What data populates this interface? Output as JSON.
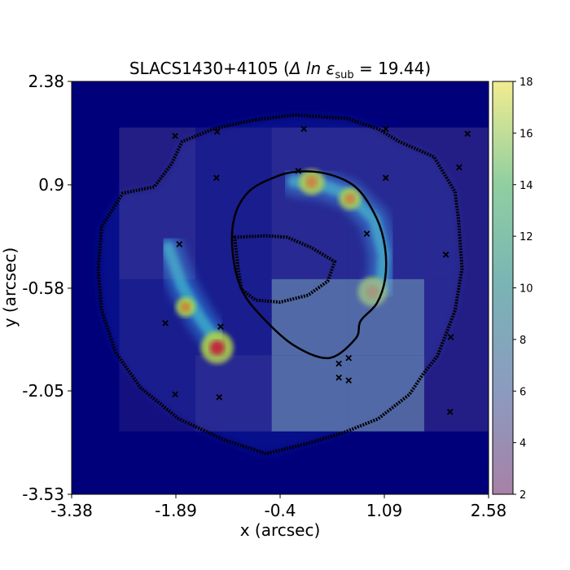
{
  "chart_data": {
    "type": "heatmap",
    "title_prefix": "SLACS1430+4105 (",
    "title_symbol": "Δ ln ε",
    "title_subscript": "sub",
    "title_suffix": " =  19.44)",
    "xlabel": "x (arcsec)",
    "ylabel": "y (arcsec)",
    "xlim": [
      -3.38,
      2.58
    ],
    "ylim": [
      -3.53,
      2.38
    ],
    "x_tick_labels": [
      "-3.38",
      "-1.89",
      "-0.4",
      "1.09",
      "2.58"
    ],
    "x_tick_values": [
      -3.38,
      -1.89,
      -0.4,
      1.09,
      2.58
    ],
    "y_tick_labels": [
      "2.38",
      "0.9",
      "-0.58",
      "-2.05",
      "-3.53"
    ],
    "y_tick_values": [
      2.38,
      0.9,
      -0.58,
      -2.05,
      -3.53
    ],
    "colorbar": {
      "range": [
        2,
        18
      ],
      "ticks": [
        "2",
        "4",
        "6",
        "8",
        "10",
        "12",
        "14",
        "16",
        "18"
      ],
      "colormap": "viridis, semi-transparent"
    },
    "subhalo_grid": {
      "x_edges": [
        -2.7,
        -1.61,
        -0.52,
        0.57,
        1.66,
        2.58
      ],
      "y_edges": [
        1.72,
        0.64,
        -0.45,
        -1.54,
        -2.63
      ],
      "values": [
        [
          3,
          2,
          3,
          3,
          3
        ],
        [
          3,
          2,
          3,
          4,
          3
        ],
        [
          2,
          2,
          8,
          8,
          3
        ],
        [
          2,
          3,
          8,
          8,
          3
        ]
      ],
      "default_value": 2
    },
    "lensed_arcs": [
      {
        "name": "upper-right arc",
        "points": [
          [
            -0.2,
            0.95
          ],
          [
            0.2,
            0.9
          ],
          [
            0.6,
            0.75
          ],
          [
            0.95,
            0.4
          ],
          [
            1.08,
            -0.1
          ],
          [
            1.05,
            -0.55
          ]
        ]
      },
      {
        "name": "left arc",
        "points": [
          [
            -2.0,
            0.0
          ],
          [
            -1.8,
            -0.55
          ],
          [
            -1.55,
            -1.0
          ],
          [
            -1.3,
            -1.35
          ]
        ]
      }
    ],
    "bright_knots": [
      {
        "x": -1.3,
        "y": -1.43,
        "intensity": 1.0
      },
      {
        "x": 0.92,
        "y": -0.63,
        "intensity": 0.85
      },
      {
        "x": 0.05,
        "y": 0.94,
        "intensity": 0.7
      },
      {
        "x": 0.6,
        "y": 0.7,
        "intensity": 0.55
      },
      {
        "x": -1.75,
        "y": -0.85,
        "intensity": 0.45
      }
    ],
    "critical_curve": [
      [
        -0.15,
        1.09
      ],
      [
        0.3,
        1.05
      ],
      [
        0.7,
        0.85
      ],
      [
        0.98,
        0.42
      ],
      [
        1.1,
        0.0
      ],
      [
        1.1,
        -0.45
      ],
      [
        0.98,
        -0.8
      ],
      [
        0.75,
        -1.05
      ],
      [
        0.68,
        -1.3
      ],
      [
        0.3,
        -1.58
      ],
      [
        -0.2,
        -1.4
      ],
      [
        -0.65,
        -1.0
      ],
      [
        -0.95,
        -0.6
      ],
      [
        -1.08,
        -0.05
      ],
      [
        -1.05,
        0.45
      ],
      [
        -0.85,
        0.8
      ],
      [
        -0.5,
        1.0
      ]
    ],
    "mask_outer": [
      [
        -0.75,
        1.83
      ],
      [
        -0.2,
        1.9
      ],
      [
        0.55,
        1.85
      ],
      [
        1.0,
        1.7
      ],
      [
        1.3,
        1.52
      ],
      [
        1.8,
        1.3
      ],
      [
        2.1,
        0.8
      ],
      [
        2.15,
        0.4
      ],
      [
        2.2,
        -0.3
      ],
      [
        2.1,
        -0.9
      ],
      [
        1.85,
        -1.55
      ],
      [
        1.65,
        -1.8
      ],
      [
        1.45,
        -2.1
      ],
      [
        1.0,
        -2.45
      ],
      [
        0.5,
        -2.65
      ],
      [
        0.0,
        -2.8
      ],
      [
        -0.6,
        -2.95
      ],
      [
        -1.2,
        -2.75
      ],
      [
        -1.85,
        -2.45
      ],
      [
        -2.4,
        -2.0
      ],
      [
        -2.75,
        -1.5
      ],
      [
        -2.95,
        -0.9
      ],
      [
        -3.0,
        -0.3
      ],
      [
        -2.95,
        0.3
      ],
      [
        -2.65,
        0.78
      ],
      [
        -2.2,
        0.87
      ],
      [
        -1.95,
        1.2
      ],
      [
        -1.8,
        1.52
      ],
      [
        -1.35,
        1.7
      ],
      [
        -1.0,
        1.78
      ]
    ],
    "mask_inner": [
      [
        -1.05,
        0.15
      ],
      [
        -0.6,
        0.17
      ],
      [
        -0.3,
        0.15
      ],
      [
        0.05,
        0.0
      ],
      [
        0.38,
        -0.2
      ],
      [
        0.28,
        -0.48
      ],
      [
        0.0,
        -0.68
      ],
      [
        -0.4,
        -0.78
      ],
      [
        -0.75,
        -0.75
      ],
      [
        -0.95,
        -0.6
      ],
      [
        -1.0,
        -0.3
      ]
    ],
    "cross_markers": [
      [
        -1.9,
        1.6
      ],
      [
        -1.3,
        1.66
      ],
      [
        -0.06,
        1.7
      ],
      [
        1.11,
        1.7
      ],
      [
        2.28,
        1.63
      ],
      [
        -1.31,
        1.0
      ],
      [
        -0.14,
        1.1
      ],
      [
        1.11,
        1.0
      ],
      [
        2.16,
        1.15
      ],
      [
        -1.84,
        0.05
      ],
      [
        0.84,
        0.2
      ],
      [
        1.97,
        -0.1
      ],
      [
        -2.04,
        -1.08
      ],
      [
        -1.25,
        -1.13
      ],
      [
        2.04,
        -1.28
      ],
      [
        0.44,
        -1.66
      ],
      [
        0.58,
        -1.58
      ],
      [
        0.44,
        -1.86
      ],
      [
        0.58,
        -1.9
      ],
      [
        -1.9,
        -2.1
      ],
      [
        -1.27,
        -2.14
      ],
      [
        2.03,
        -2.35
      ]
    ]
  }
}
